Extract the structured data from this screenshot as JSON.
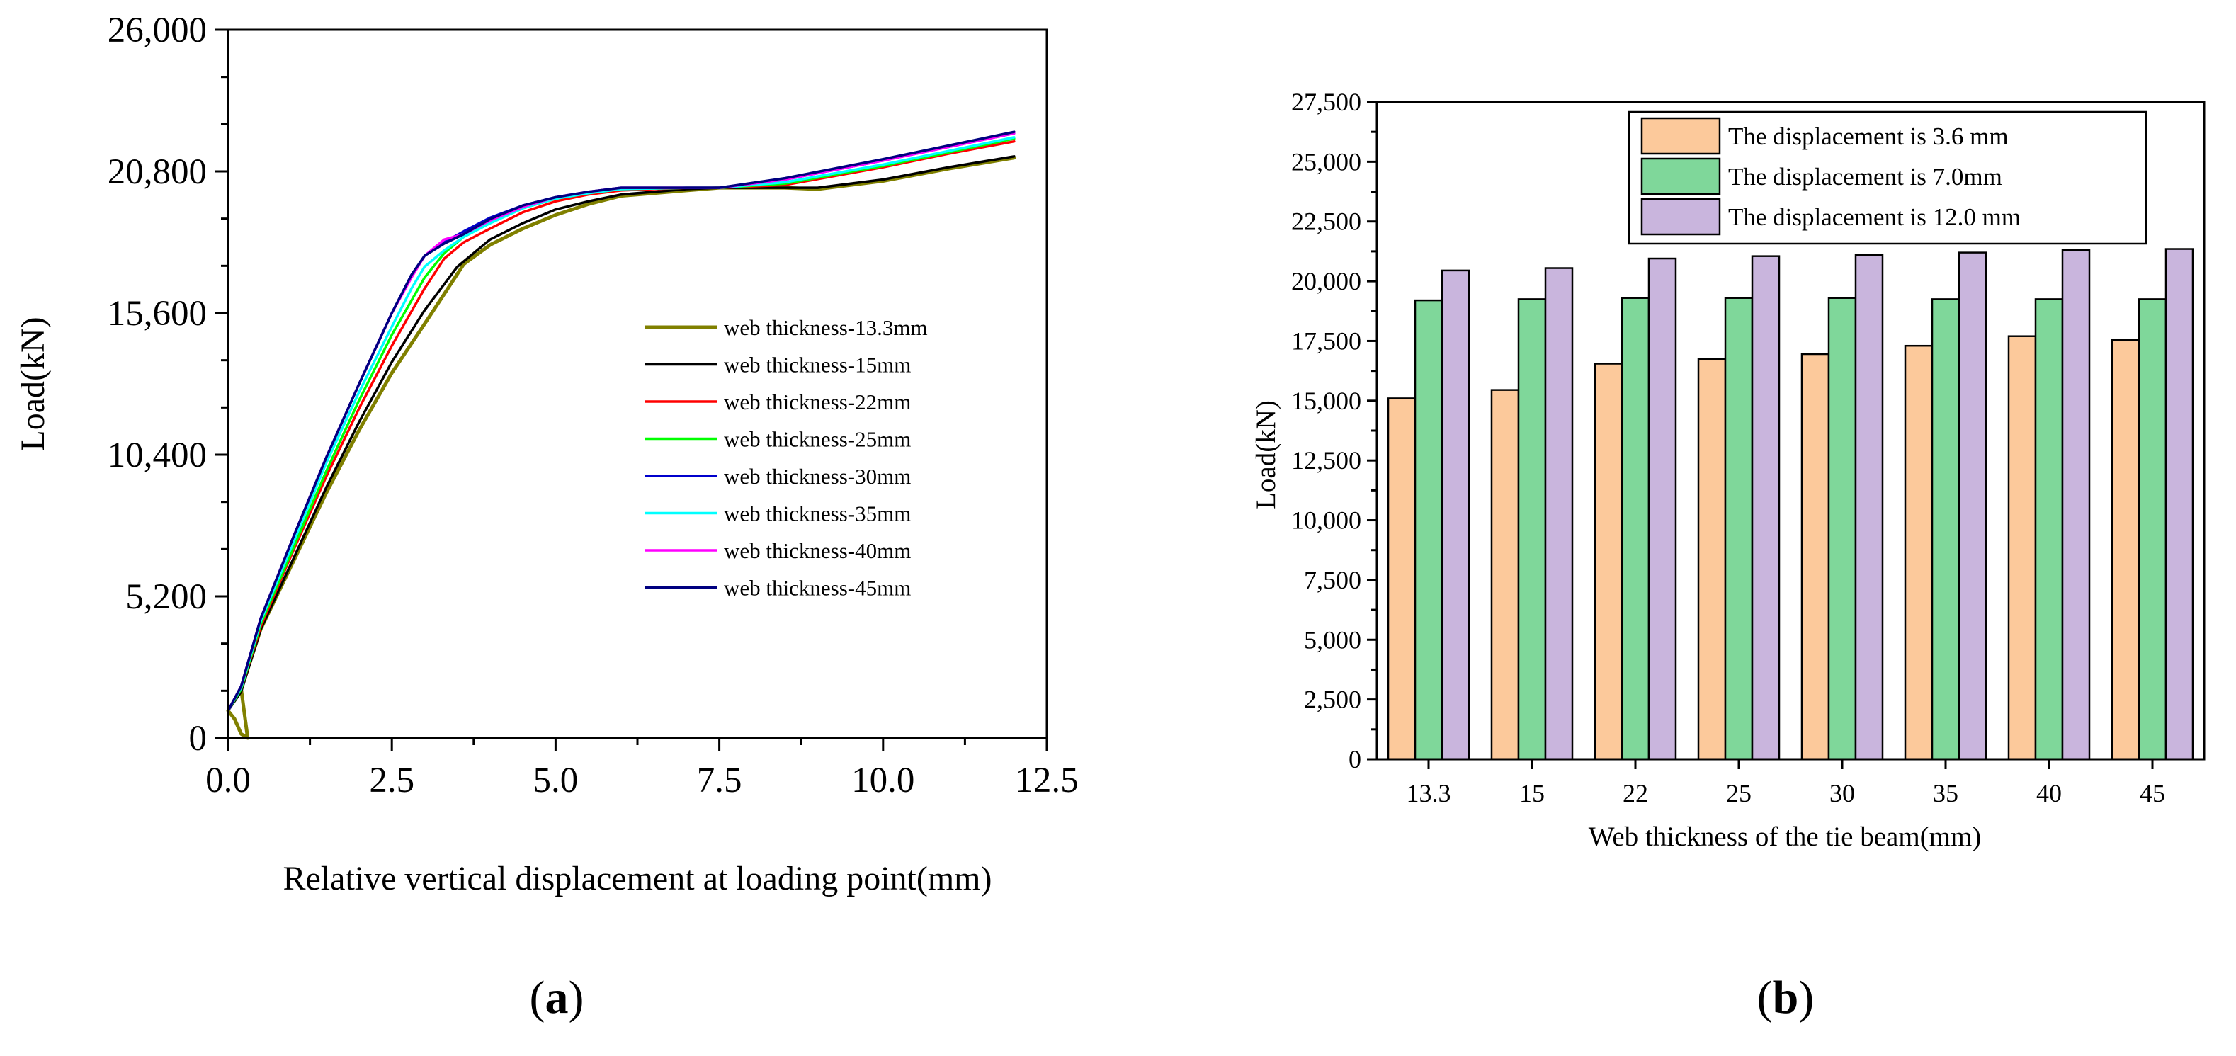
{
  "chart_data": [
    {
      "type": "line",
      "panel_label": "(a)",
      "panel_letter": "a",
      "xlabel": "Relative vertical displacement at loading point(mm)",
      "ylabel": "Load(kN)",
      "xlim": [
        0,
        12.5
      ],
      "ylim": [
        0,
        26000
      ],
      "xticks": [
        0,
        2.5,
        5,
        7.5,
        10,
        12.5
      ],
      "xtick_labels": [
        "0.0",
        "2.5",
        "5.0",
        "7.5",
        "10.0",
        "12.5"
      ],
      "yticks": [
        0,
        5200,
        10400,
        15600,
        20800,
        26000
      ],
      "ytick_labels": [
        "0",
        "5,200",
        "10,400",
        "15,600",
        "20,800",
        "26,000"
      ],
      "grid": false,
      "legend_position": "center-right",
      "series": [
        {
          "name": "web thickness-13.3mm",
          "color": "#808000",
          "x": [
            0,
            0.1,
            0.2,
            0.3,
            0.2,
            0.5,
            1.0,
            1.5,
            2.0,
            2.5,
            3.0,
            3.3,
            3.6,
            4.0,
            4.5,
            5.0,
            5.5,
            6.0,
            7.0,
            7.5,
            8.5,
            9.0,
            10.0,
            11.0,
            12.0
          ],
          "y": [
            1000,
            700,
            150,
            0,
            1800,
            4000,
            6500,
            9000,
            11300,
            13400,
            15200,
            16300,
            17400,
            18100,
            18700,
            19200,
            19600,
            19900,
            20100,
            20200,
            20200,
            20150,
            20450,
            20900,
            21300
          ]
        },
        {
          "name": "web thickness-15mm",
          "color": "#000000",
          "x": [
            0,
            0.2,
            0.5,
            1.0,
            1.5,
            2.0,
            2.5,
            3.0,
            3.5,
            4.0,
            4.5,
            5.0,
            5.5,
            6.0,
            7.0,
            7.5,
            8.5,
            9.0,
            10.0,
            11.0,
            12.0
          ],
          "y": [
            1000,
            1700,
            4000,
            6600,
            9200,
            11600,
            13800,
            15700,
            17300,
            18300,
            18900,
            19400,
            19700,
            19950,
            20150,
            20200,
            20200,
            20200,
            20500,
            20950,
            21350
          ]
        },
        {
          "name": "web thickness-22mm",
          "color": "#ff0000",
          "x": [
            0,
            0.2,
            0.5,
            1.0,
            1.5,
            2.0,
            2.5,
            3.0,
            3.3,
            3.6,
            4.0,
            4.5,
            5.0,
            5.5,
            6.0,
            7.0,
            7.5,
            8.5,
            10.0,
            11.0,
            12.0
          ],
          "y": [
            1000,
            1800,
            4100,
            6900,
            9600,
            12100,
            14400,
            16500,
            17600,
            18200,
            18700,
            19300,
            19700,
            19950,
            20100,
            20200,
            20200,
            20300,
            20950,
            21450,
            21900
          ]
        },
        {
          "name": "web thickness-25mm",
          "color": "#00ff00",
          "x": [
            0,
            0.2,
            0.5,
            1.0,
            1.5,
            2.0,
            2.5,
            3.0,
            3.3,
            3.6,
            4.0,
            4.5,
            5.0,
            5.5,
            6.0,
            7.0,
            7.5,
            8.5,
            10.0,
            11.0,
            12.0
          ],
          "y": [
            1000,
            1800,
            4200,
            7000,
            9800,
            12400,
            14800,
            16900,
            17800,
            18400,
            18900,
            19450,
            19800,
            20000,
            20150,
            20200,
            20200,
            20350,
            21000,
            21500,
            22000
          ]
        },
        {
          "name": "web thickness-30mm",
          "color": "#0000cc",
          "x": [
            0,
            0.2,
            0.5,
            1.0,
            1.5,
            2.0,
            2.5,
            2.8,
            3.0,
            3.3,
            3.6,
            4.0,
            4.5,
            5.0,
            5.5,
            6.0,
            7.0,
            7.5,
            8.5,
            10.0,
            11.0,
            12.0
          ],
          "y": [
            1000,
            1900,
            4400,
            7400,
            10300,
            13000,
            15600,
            17000,
            17700,
            18200,
            18600,
            19100,
            19550,
            19850,
            20050,
            20200,
            20200,
            20200,
            20500,
            21200,
            21700,
            22200
          ]
        },
        {
          "name": "web thickness-35mm",
          "color": "#00ffff",
          "x": [
            0,
            0.2,
            0.5,
            1.0,
            1.5,
            2.0,
            2.5,
            2.8,
            3.0,
            3.3,
            3.6,
            4.0,
            4.5,
            5.0,
            5.5,
            6.0,
            7.0,
            7.5,
            8.5,
            10.0,
            11.0,
            12.0
          ],
          "y": [
            1000,
            1850,
            4300,
            7200,
            10100,
            12700,
            15100,
            16500,
            17300,
            17900,
            18400,
            18900,
            19450,
            19800,
            20000,
            20150,
            20200,
            20200,
            20400,
            21050,
            21550,
            22050
          ]
        },
        {
          "name": "web thickness-40mm",
          "color": "#ff00ff",
          "x": [
            0,
            0.2,
            0.5,
            1.0,
            1.5,
            2.0,
            2.5,
            2.8,
            3.0,
            3.3,
            3.6,
            4.0,
            4.5,
            5.0,
            5.5,
            6.0,
            7.0,
            7.5,
            8.5,
            10.0,
            11.0,
            12.0
          ],
          "y": [
            1000,
            1900,
            4400,
            7400,
            10300,
            13000,
            15600,
            16900,
            17700,
            18300,
            18500,
            19000,
            19500,
            19850,
            20050,
            20200,
            20200,
            20200,
            20500,
            21200,
            21700,
            22200
          ]
        },
        {
          "name": "web thickness-45mm",
          "color": "#000080",
          "x": [
            0,
            0.2,
            0.5,
            1.0,
            1.5,
            2.0,
            2.5,
            2.8,
            3.0,
            3.3,
            3.6,
            4.0,
            4.5,
            5.0,
            5.5,
            6.0,
            7.0,
            7.5,
            8.5,
            10.0,
            11.0,
            12.0
          ],
          "y": [
            1000,
            1900,
            4400,
            7400,
            10300,
            13000,
            15600,
            17000,
            17700,
            18150,
            18500,
            19050,
            19550,
            19850,
            20050,
            20200,
            20200,
            20200,
            20550,
            21250,
            21750,
            22250
          ]
        }
      ]
    },
    {
      "type": "bar",
      "panel_label": "(b)",
      "panel_letter": "b",
      "xlabel": "Web thickness of the tie beam(mm)",
      "ylabel": "Load(kN)",
      "ylim": [
        0,
        27500
      ],
      "yticks": [
        0,
        2500,
        5000,
        7500,
        10000,
        12500,
        15000,
        17500,
        20000,
        22500,
        25000,
        27500
      ],
      "ytick_labels": [
        "0",
        "2,500",
        "5,000",
        "7,500",
        "10,000",
        "12,500",
        "15,000",
        "17,500",
        "20,000",
        "22,500",
        "25,000",
        "27,500"
      ],
      "categories": [
        "13.3",
        "15",
        "22",
        "25",
        "30",
        "35",
        "40",
        "45"
      ],
      "grid": false,
      "legend_position": "top-right",
      "series": [
        {
          "name": "The displacement is 3.6 mm",
          "color": "#fcc99b",
          "values": [
            15100,
            15450,
            16550,
            16750,
            16950,
            17300,
            17700,
            17550
          ]
        },
        {
          "name": "The displacement is 7.0mm",
          "color": "#7fd79a",
          "values": [
            19200,
            19250,
            19300,
            19300,
            19300,
            19250,
            19250,
            19250
          ]
        },
        {
          "name": "The displacement is 12.0 mm",
          "color": "#c9b5dd",
          "values": [
            20450,
            20550,
            20950,
            21050,
            21100,
            21200,
            21300,
            21350
          ]
        }
      ]
    }
  ]
}
